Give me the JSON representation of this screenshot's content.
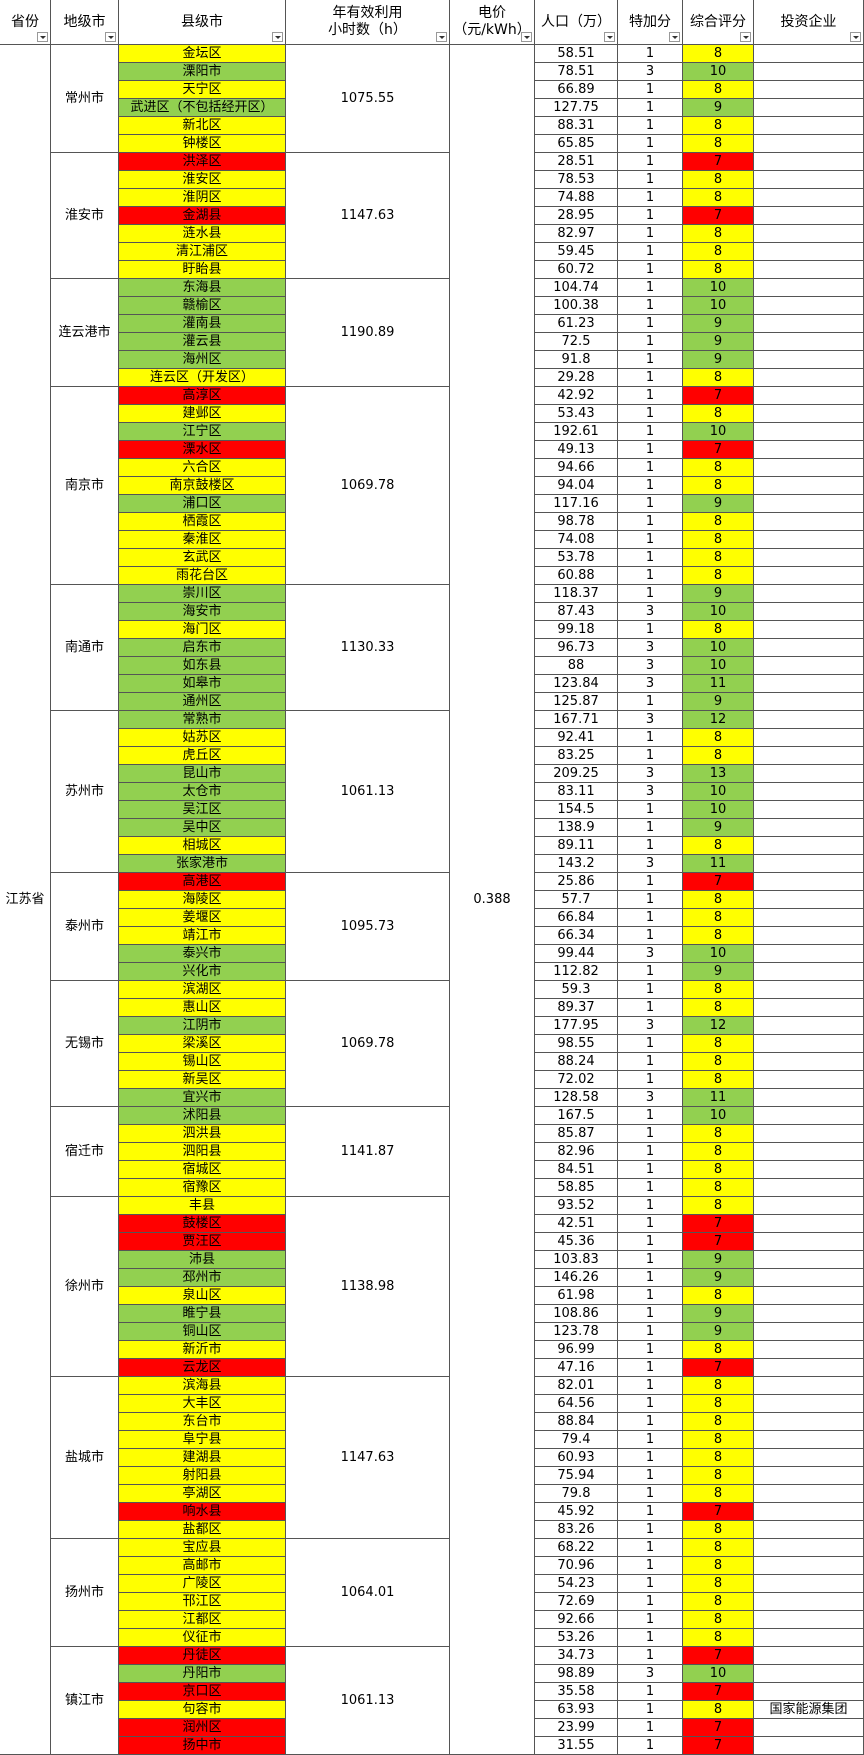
{
  "headers": [
    "省份",
    "地级市",
    "县级市",
    "年有效利用\n小时数（h）",
    "电价\n（元/kWh）",
    "人口（万）",
    "特加分",
    "综合评分",
    "投资企业"
  ],
  "province": "江苏省",
  "price": 0.388,
  "cities": [
    {
      "name": "常州市",
      "hours": 1075.55,
      "districts": [
        {
          "name": "金坛区",
          "population": 58.51,
          "bonus": 1,
          "score": 8
        },
        {
          "name": "溧阳市",
          "population": 78.51,
          "bonus": 3,
          "score": 10
        },
        {
          "name": "天宁区",
          "population": 66.89,
          "bonus": 1,
          "score": 8
        },
        {
          "name": "武进区（不包括经开区）",
          "population": 127.75,
          "bonus": 1,
          "score": 9
        },
        {
          "name": "新北区",
          "population": 88.31,
          "bonus": 1,
          "score": 8
        },
        {
          "name": "钟楼区",
          "population": 65.85,
          "bonus": 1,
          "score": 8
        }
      ]
    },
    {
      "name": "淮安市",
      "hours": 1147.63,
      "districts": [
        {
          "name": "洪泽区",
          "population": 28.51,
          "bonus": 1,
          "score": 7
        },
        {
          "name": "淮安区",
          "population": 78.53,
          "bonus": 1,
          "score": 8
        },
        {
          "name": "淮阴区",
          "population": 74.88,
          "bonus": 1,
          "score": 8
        },
        {
          "name": "金湖县",
          "population": 28.95,
          "bonus": 1,
          "score": 7
        },
        {
          "name": "涟水县",
          "population": 82.97,
          "bonus": 1,
          "score": 8
        },
        {
          "name": "清江浦区",
          "population": 59.45,
          "bonus": 1,
          "score": 8
        },
        {
          "name": "盱眙县",
          "population": 60.72,
          "bonus": 1,
          "score": 8
        }
      ]
    },
    {
      "name": "连云港市",
      "hours": 1190.89,
      "districts": [
        {
          "name": "东海县",
          "population": 104.74,
          "bonus": 1,
          "score": 10
        },
        {
          "name": "赣榆区",
          "population": 100.38,
          "bonus": 1,
          "score": 10
        },
        {
          "name": "灌南县",
          "population": 61.23,
          "bonus": 1,
          "score": 9
        },
        {
          "name": "灌云县",
          "population": 72.5,
          "bonus": 1,
          "score": 9
        },
        {
          "name": "海州区",
          "population": 91.8,
          "bonus": 1,
          "score": 9
        },
        {
          "name": "连云区（开发区）",
          "population": 29.28,
          "bonus": 1,
          "score": 8
        }
      ]
    },
    {
      "name": "南京市",
      "hours": 1069.78,
      "districts": [
        {
          "name": "高淳区",
          "population": 42.92,
          "bonus": 1,
          "score": 7
        },
        {
          "name": "建邺区",
          "population": 53.43,
          "bonus": 1,
          "score": 8
        },
        {
          "name": "江宁区",
          "population": 192.61,
          "bonus": 1,
          "score": 10
        },
        {
          "name": "溧水区",
          "population": 49.13,
          "bonus": 1,
          "score": 7
        },
        {
          "name": "六合区",
          "population": 94.66,
          "bonus": 1,
          "score": 8
        },
        {
          "name": "南京鼓楼区",
          "population": 94.04,
          "bonus": 1,
          "score": 8
        },
        {
          "name": "浦口区",
          "population": 117.16,
          "bonus": 1,
          "score": 9
        },
        {
          "name": "栖霞区",
          "population": 98.78,
          "bonus": 1,
          "score": 8
        },
        {
          "name": "秦淮区",
          "population": 74.08,
          "bonus": 1,
          "score": 8
        },
        {
          "name": "玄武区",
          "population": 53.78,
          "bonus": 1,
          "score": 8
        },
        {
          "name": "雨花台区",
          "population": 60.88,
          "bonus": 1,
          "score": 8
        }
      ]
    },
    {
      "name": "南通市",
      "hours": 1130.33,
      "districts": [
        {
          "name": "崇川区",
          "population": 118.37,
          "bonus": 1,
          "score": 9
        },
        {
          "name": "海安市",
          "population": 87.43,
          "bonus": 3,
          "score": 10
        },
        {
          "name": "海门区",
          "population": 99.18,
          "bonus": 1,
          "score": 8
        },
        {
          "name": "启东市",
          "population": 96.73,
          "bonus": 3,
          "score": 10
        },
        {
          "name": "如东县",
          "population": 88,
          "bonus": 3,
          "score": 10
        },
        {
          "name": "如皋市",
          "population": 123.84,
          "bonus": 3,
          "score": 11
        },
        {
          "name": "通州区",
          "population": 125.87,
          "bonus": 1,
          "score": 9
        }
      ]
    },
    {
      "name": "苏州市",
      "hours": 1061.13,
      "districts": [
        {
          "name": "常熟市",
          "population": 167.71,
          "bonus": 3,
          "score": 12
        },
        {
          "name": "姑苏区",
          "population": 92.41,
          "bonus": 1,
          "score": 8
        },
        {
          "name": "虎丘区",
          "population": 83.25,
          "bonus": 1,
          "score": 8
        },
        {
          "name": "昆山市",
          "population": 209.25,
          "bonus": 3,
          "score": 13
        },
        {
          "name": "太仓市",
          "population": 83.11,
          "bonus": 3,
          "score": 10
        },
        {
          "name": "吴江区",
          "population": 154.5,
          "bonus": 1,
          "score": 10
        },
        {
          "name": "吴中区",
          "population": 138.9,
          "bonus": 1,
          "score": 9
        },
        {
          "name": "相城区",
          "population": 89.11,
          "bonus": 1,
          "score": 8
        },
        {
          "name": "张家港市",
          "population": 143.2,
          "bonus": 3,
          "score": 11
        }
      ]
    },
    {
      "name": "泰州市",
      "hours": 1095.73,
      "districts": [
        {
          "name": "高港区",
          "population": 25.86,
          "bonus": 1,
          "score": 7
        },
        {
          "name": "海陵区",
          "population": 57.7,
          "bonus": 1,
          "score": 8
        },
        {
          "name": "姜堰区",
          "population": 66.84,
          "bonus": 1,
          "score": 8
        },
        {
          "name": "靖江市",
          "population": 66.34,
          "bonus": 1,
          "score": 8
        },
        {
          "name": "泰兴市",
          "population": 99.44,
          "bonus": 3,
          "score": 10
        },
        {
          "name": "兴化市",
          "population": 112.82,
          "bonus": 1,
          "score": 9
        }
      ]
    },
    {
      "name": "无锡市",
      "hours": 1069.78,
      "districts": [
        {
          "name": "滨湖区",
          "population": 59.3,
          "bonus": 1,
          "score": 8
        },
        {
          "name": "惠山区",
          "population": 89.37,
          "bonus": 1,
          "score": 8
        },
        {
          "name": "江阴市",
          "population": 177.95,
          "bonus": 3,
          "score": 12
        },
        {
          "name": "梁溪区",
          "population": 98.55,
          "bonus": 1,
          "score": 8
        },
        {
          "name": "锡山区",
          "population": 88.24,
          "bonus": 1,
          "score": 8
        },
        {
          "name": "新吴区",
          "population": 72.02,
          "bonus": 1,
          "score": 8
        },
        {
          "name": "宜兴市",
          "population": 128.58,
          "bonus": 3,
          "score": 11
        }
      ]
    },
    {
      "name": "宿迁市",
      "hours": 1141.87,
      "districts": [
        {
          "name": "沭阳县",
          "population": 167.5,
          "bonus": 1,
          "score": 10
        },
        {
          "name": "泗洪县",
          "population": 85.87,
          "bonus": 1,
          "score": 8
        },
        {
          "name": "泗阳县",
          "population": 82.96,
          "bonus": 1,
          "score": 8
        },
        {
          "name": "宿城区",
          "population": 84.51,
          "bonus": 1,
          "score": 8
        },
        {
          "name": "宿豫区",
          "population": 58.85,
          "bonus": 1,
          "score": 8
        }
      ]
    },
    {
      "name": "徐州市",
      "hours": 1138.98,
      "districts": [
        {
          "name": "丰县",
          "population": 93.52,
          "bonus": 1,
          "score": 8
        },
        {
          "name": "鼓楼区",
          "population": 42.51,
          "bonus": 1,
          "score": 7
        },
        {
          "name": "贾汪区",
          "population": 45.36,
          "bonus": 1,
          "score": 7
        },
        {
          "name": "沛县",
          "population": 103.83,
          "bonus": 1,
          "score": 9
        },
        {
          "name": "邳州市",
          "population": 146.26,
          "bonus": 1,
          "score": 9
        },
        {
          "name": "泉山区",
          "population": 61.98,
          "bonus": 1,
          "score": 8
        },
        {
          "name": "睢宁县",
          "population": 108.86,
          "bonus": 1,
          "score": 9
        },
        {
          "name": "铜山区",
          "population": 123.78,
          "bonus": 1,
          "score": 9
        },
        {
          "name": "新沂市",
          "population": 96.99,
          "bonus": 1,
          "score": 8
        },
        {
          "name": "云龙区",
          "population": 47.16,
          "bonus": 1,
          "score": 7
        }
      ]
    },
    {
      "name": "盐城市",
      "hours": 1147.63,
      "districts": [
        {
          "name": "滨海县",
          "population": 82.01,
          "bonus": 1,
          "score": 8
        },
        {
          "name": "大丰区",
          "population": 64.56,
          "bonus": 1,
          "score": 8
        },
        {
          "name": "东台市",
          "population": 88.84,
          "bonus": 1,
          "score": 8
        },
        {
          "name": "阜宁县",
          "population": 79.4,
          "bonus": 1,
          "score": 8
        },
        {
          "name": "建湖县",
          "population": 60.93,
          "bonus": 1,
          "score": 8
        },
        {
          "name": "射阳县",
          "population": 75.94,
          "bonus": 1,
          "score": 8
        },
        {
          "name": "亭湖区",
          "population": 79.8,
          "bonus": 1,
          "score": 8
        },
        {
          "name": "响水县",
          "population": 45.92,
          "bonus": 1,
          "score": 7
        },
        {
          "name": "盐都区",
          "population": 83.26,
          "bonus": 1,
          "score": 8
        }
      ]
    },
    {
      "name": "扬州市",
      "hours": 1064.01,
      "districts": [
        {
          "name": "宝应县",
          "population": 68.22,
          "bonus": 1,
          "score": 8
        },
        {
          "name": "高邮市",
          "population": 70.96,
          "bonus": 1,
          "score": 8
        },
        {
          "name": "广陵区",
          "population": 54.23,
          "bonus": 1,
          "score": 8
        },
        {
          "name": "邗江区",
          "population": 72.69,
          "bonus": 1,
          "score": 8
        },
        {
          "name": "江都区",
          "population": 92.66,
          "bonus": 1,
          "score": 8
        },
        {
          "name": "仪征市",
          "population": 53.26,
          "bonus": 1,
          "score": 8
        }
      ]
    },
    {
      "name": "镇江市",
      "hours": 1061.13,
      "districts": [
        {
          "name": "丹徒区",
          "population": 34.73,
          "bonus": 1,
          "score": 7
        },
        {
          "name": "丹阳市",
          "population": 98.89,
          "bonus": 3,
          "score": 10
        },
        {
          "name": "京口区",
          "population": 35.58,
          "bonus": 1,
          "score": 7
        },
        {
          "name": "句容市",
          "population": 63.93,
          "bonus": 1,
          "score": 8,
          "investor": "国家能源集团"
        },
        {
          "name": "润州区",
          "population": 23.99,
          "bonus": 1,
          "score": 7
        },
        {
          "name": "扬中市",
          "population": 31.55,
          "bonus": 1,
          "score": 7
        }
      ]
    }
  ]
}
